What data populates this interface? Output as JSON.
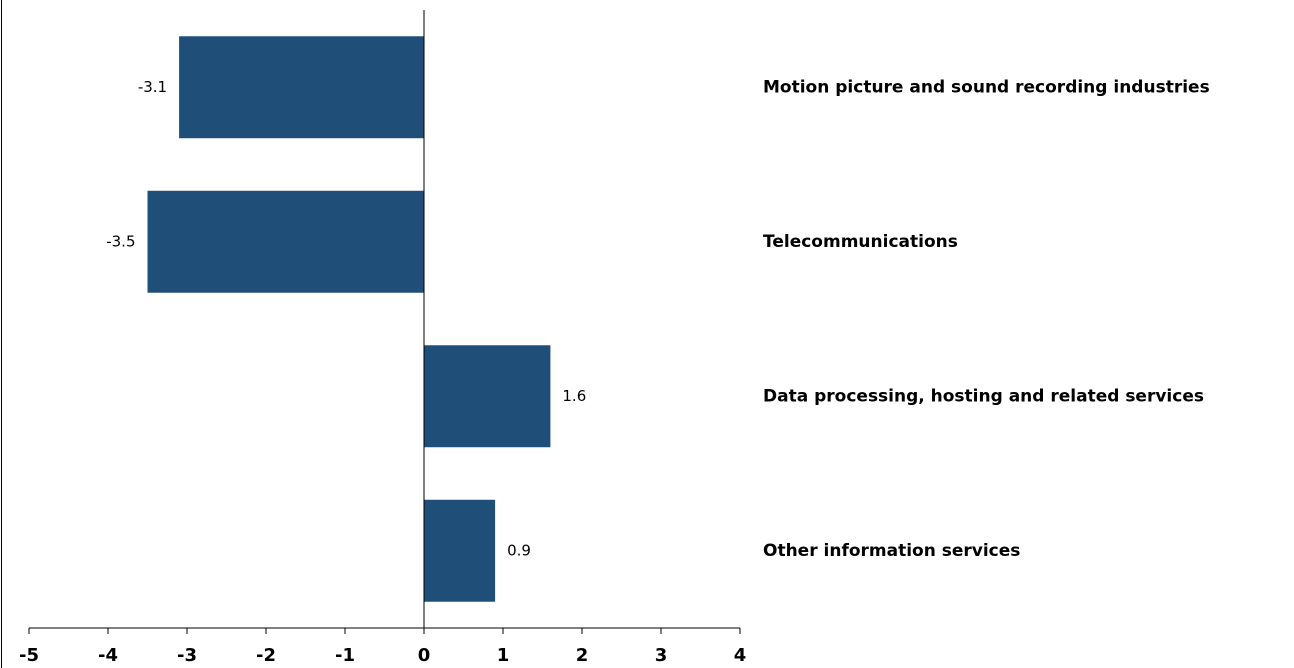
{
  "chart_data": {
    "type": "bar",
    "orientation": "horizontal",
    "categories": [
      "Motion picture and sound recording industries",
      "Telecommunications",
      "Data processing, hosting and related services",
      "Other information services"
    ],
    "values": [
      -3.1,
      -3.5,
      1.6,
      0.9
    ],
    "color": "#1f4e79",
    "xlim": [
      -5,
      4
    ],
    "xticks": [
      -5,
      -4,
      -3,
      -2,
      -1,
      0,
      1,
      2,
      3,
      4
    ],
    "grid": false
  }
}
